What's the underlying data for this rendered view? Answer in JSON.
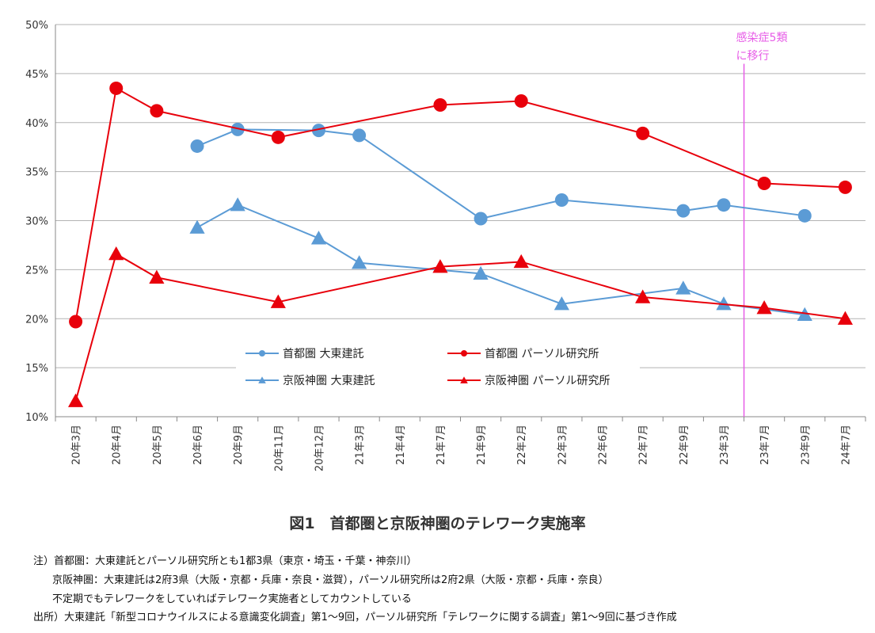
{
  "chart_data": {
    "type": "line",
    "title": "図1　首都圏と京阪神圏のテレワーク実施率",
    "categories": [
      "20年3月",
      "20年4月",
      "20年5月",
      "20年6月",
      "20年9月",
      "20年11月",
      "20年12月",
      "21年3月",
      "21年4月",
      "21年7月",
      "21年9月",
      "22年2月",
      "22年3月",
      "22年6月",
      "22年7月",
      "22年9月",
      "23年3月",
      "23年7月",
      "23年9月",
      "24年7月"
    ],
    "ylim": [
      10,
      50
    ],
    "yticks": [
      "10%",
      "15%",
      "20%",
      "25%",
      "30%",
      "35%",
      "40%",
      "45%",
      "50%"
    ],
    "ytick_values": [
      10,
      15,
      20,
      25,
      30,
      35,
      40,
      45,
      50
    ],
    "grid": true,
    "legend_position": "bottom-center",
    "series": [
      {
        "name": "首都圏 大東建託",
        "color": "#5b9bd5",
        "marker": "circle",
        "values": [
          null,
          null,
          null,
          37.6,
          39.3,
          null,
          39.2,
          38.7,
          null,
          null,
          30.2,
          null,
          32.1,
          null,
          null,
          31.0,
          31.6,
          null,
          30.5,
          null
        ]
      },
      {
        "name": "首都圏 パーソル研究所",
        "color": "#e8000b",
        "marker": "circle",
        "values": [
          19.7,
          43.5,
          41.2,
          null,
          null,
          38.5,
          null,
          null,
          null,
          41.8,
          null,
          42.2,
          null,
          null,
          38.9,
          null,
          null,
          33.8,
          null,
          33.4
        ]
      },
      {
        "name": "京阪神圏 大東建託",
        "color": "#5b9bd5",
        "marker": "triangle",
        "values": [
          null,
          null,
          null,
          29.3,
          31.6,
          null,
          28.2,
          25.7,
          null,
          null,
          24.6,
          null,
          21.5,
          null,
          null,
          23.1,
          21.5,
          null,
          20.4,
          null
        ]
      },
      {
        "name": "京阪神圏 パーソル研究所",
        "color": "#e8000b",
        "marker": "triangle",
        "values": [
          11.6,
          26.6,
          24.2,
          null,
          null,
          21.7,
          null,
          null,
          null,
          25.3,
          null,
          25.8,
          null,
          null,
          22.2,
          null,
          null,
          21.1,
          null,
          20.0
        ]
      }
    ],
    "annotation": {
      "lines": [
        "感染症5類",
        "に移行"
      ],
      "between": [
        "23年3月",
        "23年7月"
      ],
      "color": "#e75ce7"
    }
  },
  "notes": [
    "注）首都圏：大東建託とパーソル研究所とも1都3県（東京・埼玉・千葉・神奈川）",
    "京阪神圏：大東建託は2府3県（大阪・京都・兵庫・奈良・滋賀），パーソル研究所は2府2県（大阪・京都・兵庫・奈良）",
    "不定期でもテレワークをしていればテレワーク実施者としてカウントしている",
    "出所）大東建託「新型コロナウイルスによる意識変化調査」第1～9回，パーソル研究所「テレワークに関する調査」第1～9回に基づき作成"
  ]
}
